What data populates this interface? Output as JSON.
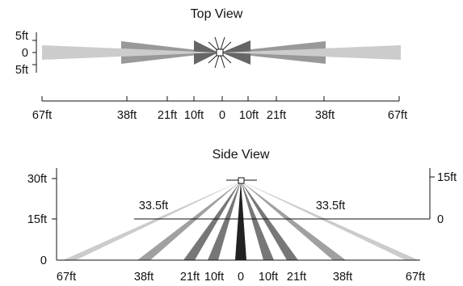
{
  "top_view": {
    "title": "Top View",
    "y_labels": [
      "5ft",
      "0",
      "5ft"
    ],
    "x_labels": [
      "67ft",
      "38ft",
      "21ft",
      "10ft",
      "0",
      "10ft",
      "21ft",
      "38ft",
      "67ft"
    ],
    "colors": {
      "far": "#cccccc",
      "mid": "#999999",
      "near": "#666666"
    }
  },
  "side_view": {
    "title": "Side View",
    "left_y_labels": [
      "30ft",
      "15ft",
      "0"
    ],
    "right_y_labels": [
      "15ft",
      "0"
    ],
    "height_labels": [
      "33.5ft",
      "33.5ft"
    ],
    "x_labels": [
      "67ft",
      "38ft",
      "21ft",
      "10ft",
      "0",
      "10ft",
      "21ft",
      "38ft",
      "67ft"
    ],
    "colors": {
      "far": "#cccccc",
      "mid": "#a0a0a0",
      "near": "#777777",
      "center": "#222222"
    }
  }
}
